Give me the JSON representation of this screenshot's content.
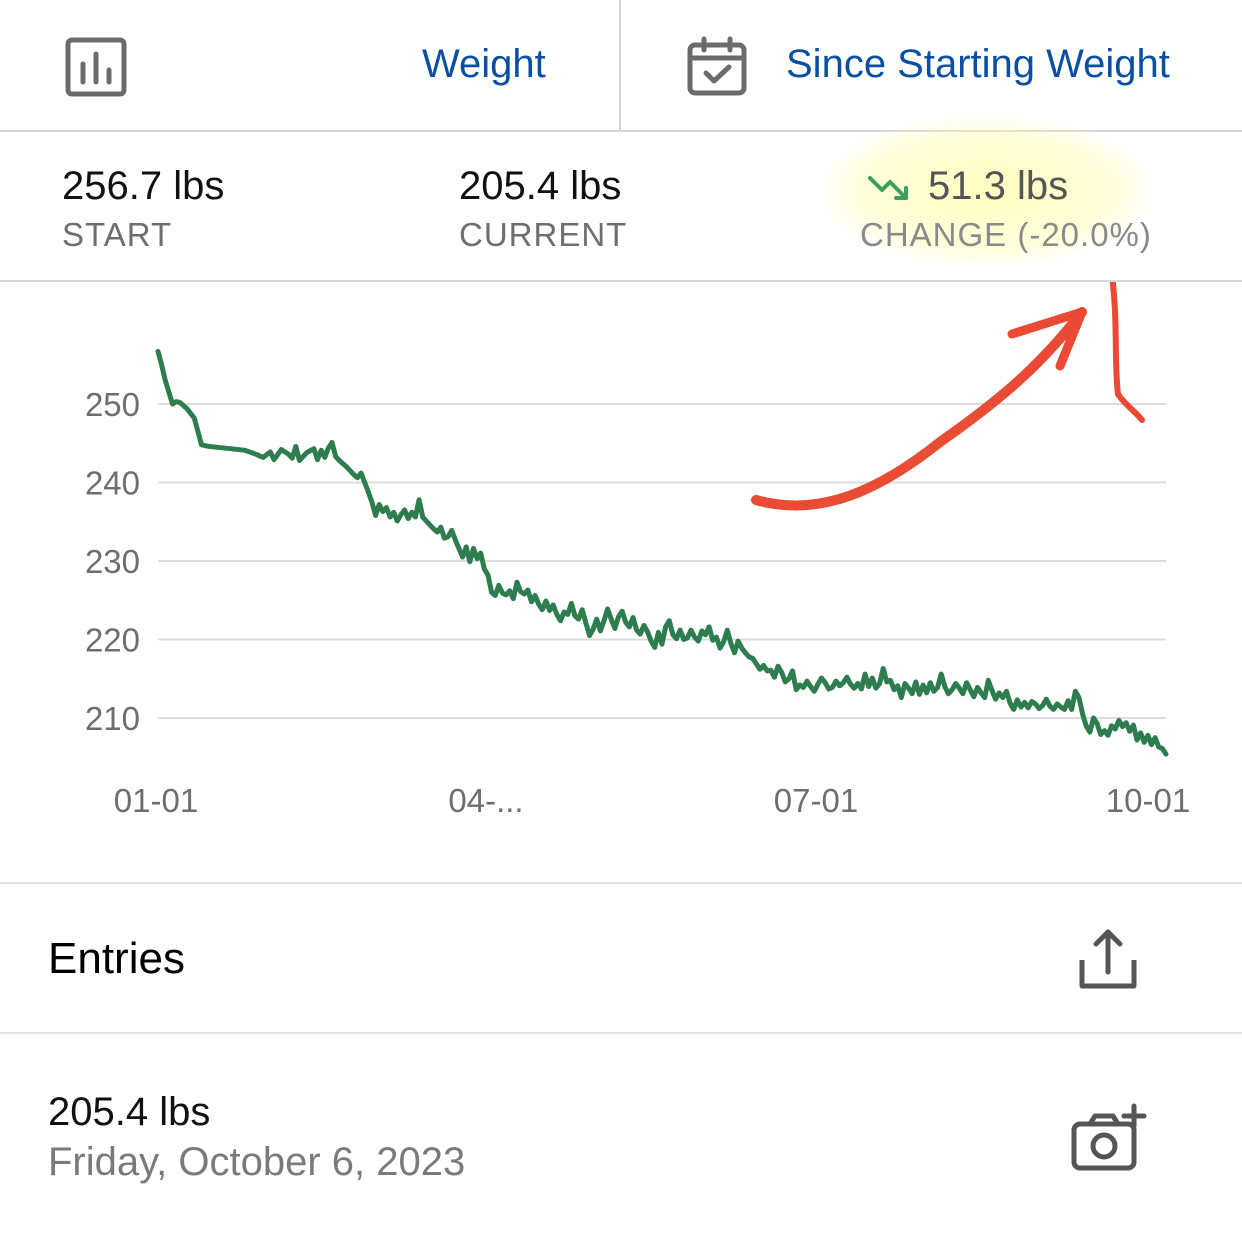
{
  "header": {
    "metric_label": "Weight",
    "range_label": "Since Starting Weight",
    "chart_icon": "bar-chart-icon",
    "calendar_icon": "calendar-check-icon",
    "accent_color": "#0a4fa3"
  },
  "stats": {
    "start": {
      "value": "256.7 lbs",
      "label": "START"
    },
    "current": {
      "value": "205.4 lbs",
      "label": "CURRENT"
    },
    "change": {
      "value": "51.3 lbs",
      "label": "CHANGE (-20.0%)",
      "icon": "trend-down-icon",
      "icon_color": "#3aa05c"
    }
  },
  "chart_data": {
    "type": "line",
    "x_tick_labels": [
      "01-01",
      "04-...",
      "07-01",
      "10-01"
    ],
    "y_ticks": [
      250,
      240,
      230,
      220,
      210
    ],
    "ylim": [
      205,
      257
    ],
    "xlim_days": [
      0,
      278
    ],
    "grid": true,
    "line_color": "#2e7d4f",
    "series": [
      {
        "points_day_weight": [
          [
            0,
            256.7
          ],
          [
            1,
            255.0
          ],
          [
            2,
            253.0
          ],
          [
            3,
            251.5
          ],
          [
            4,
            250.0
          ],
          [
            5,
            250.3
          ],
          [
            6,
            250.2
          ],
          [
            8,
            249.4
          ],
          [
            10,
            248.2
          ],
          [
            12,
            244.8
          ],
          [
            14,
            244.6
          ],
          [
            16,
            244.5
          ],
          [
            20,
            244.3
          ],
          [
            24,
            244.1
          ],
          [
            27,
            243.6
          ],
          [
            29,
            243.2
          ],
          [
            31,
            243.9
          ],
          [
            32,
            242.9
          ],
          [
            34,
            244.2
          ],
          [
            36,
            243.6
          ],
          [
            37,
            243.1
          ],
          [
            38,
            244.6
          ],
          [
            39,
            242.8
          ],
          [
            41,
            243.8
          ],
          [
            43,
            244.3
          ],
          [
            44,
            242.9
          ],
          [
            45,
            244.1
          ],
          [
            46,
            243.2
          ],
          [
            47,
            244.4
          ],
          [
            48,
            245.1
          ],
          [
            49,
            243.3
          ],
          [
            50,
            242.8
          ],
          [
            52,
            242.0
          ],
          [
            54,
            241.0
          ],
          [
            55,
            240.6
          ],
          [
            56,
            241.2
          ],
          [
            57,
            240.0
          ],
          [
            58,
            238.8
          ],
          [
            59,
            237.5
          ],
          [
            60,
            235.8
          ],
          [
            61,
            237.2
          ],
          [
            62,
            236.3
          ],
          [
            63,
            236.8
          ],
          [
            64,
            235.6
          ],
          [
            65,
            236.2
          ],
          [
            66,
            235.1
          ],
          [
            67,
            235.9
          ],
          [
            68,
            236.5
          ],
          [
            69,
            235.4
          ],
          [
            70,
            236.2
          ],
          [
            71,
            235.6
          ],
          [
            72,
            237.8
          ],
          [
            73,
            235.6
          ],
          [
            74,
            235.1
          ],
          [
            75,
            234.6
          ],
          [
            76,
            234.1
          ],
          [
            77,
            233.7
          ],
          [
            78,
            234.3
          ],
          [
            79,
            232.9
          ],
          [
            80,
            233.1
          ],
          [
            81,
            233.9
          ],
          [
            82,
            232.7
          ],
          [
            83,
            231.6
          ],
          [
            84,
            230.5
          ],
          [
            85,
            231.8
          ],
          [
            86,
            229.9
          ],
          [
            87,
            231.6
          ],
          [
            88,
            230.3
          ],
          [
            89,
            231.0
          ],
          [
            90,
            229.0
          ],
          [
            91,
            228.2
          ],
          [
            92,
            226.0
          ],
          [
            93,
            225.6
          ],
          [
            94,
            226.9
          ],
          [
            95,
            225.9
          ],
          [
            96,
            225.7
          ],
          [
            97,
            226.2
          ],
          [
            98,
            225.2
          ],
          [
            99,
            227.3
          ],
          [
            100,
            226.1
          ],
          [
            101,
            225.8
          ],
          [
            102,
            226.3
          ],
          [
            103,
            224.8
          ],
          [
            104,
            225.6
          ],
          [
            105,
            224.5
          ],
          [
            106,
            223.8
          ],
          [
            107,
            224.9
          ],
          [
            108,
            223.7
          ],
          [
            109,
            224.4
          ],
          [
            110,
            223.2
          ],
          [
            111,
            222.4
          ],
          [
            112,
            223.5
          ],
          [
            113,
            223.2
          ],
          [
            114,
            224.6
          ],
          [
            115,
            223.0
          ],
          [
            116,
            222.6
          ],
          [
            117,
            223.8
          ],
          [
            118,
            222.1
          ],
          [
            119,
            220.5
          ],
          [
            120,
            221.3
          ],
          [
            121,
            222.6
          ],
          [
            122,
            221.1
          ],
          [
            123,
            222.4
          ],
          [
            124,
            223.9
          ],
          [
            125,
            222.6
          ],
          [
            126,
            221.4
          ],
          [
            127,
            222.9
          ],
          [
            128,
            223.6
          ],
          [
            129,
            222.2
          ],
          [
            130,
            221.6
          ],
          [
            131,
            222.8
          ],
          [
            132,
            221.2
          ],
          [
            133,
            220.7
          ],
          [
            134,
            221.8
          ],
          [
            135,
            221.0
          ],
          [
            136,
            219.8
          ],
          [
            137,
            219.0
          ],
          [
            138,
            220.9
          ],
          [
            139,
            219.4
          ],
          [
            140,
            221.6
          ],
          [
            141,
            222.4
          ],
          [
            142,
            220.6
          ],
          [
            143,
            220.1
          ],
          [
            144,
            221.2
          ],
          [
            145,
            220.0
          ],
          [
            146,
            220.2
          ],
          [
            147,
            221.2
          ],
          [
            148,
            220.3
          ],
          [
            149,
            219.8
          ],
          [
            150,
            221.1
          ],
          [
            151,
            220.6
          ],
          [
            152,
            221.6
          ],
          [
            153,
            219.9
          ],
          [
            154,
            220.3
          ],
          [
            155,
            218.9
          ],
          [
            156,
            219.7
          ],
          [
            157,
            221.2
          ],
          [
            158,
            219.5
          ],
          [
            159,
            218.3
          ],
          [
            160,
            219.8
          ],
          [
            161,
            218.9
          ],
          [
            162,
            218.3
          ],
          [
            163,
            217.8
          ],
          [
            164,
            217.6
          ],
          [
            165,
            216.9
          ],
          [
            166,
            216.2
          ],
          [
            167,
            216.7
          ],
          [
            168,
            216.0
          ],
          [
            169,
            216.1
          ],
          [
            170,
            215.2
          ],
          [
            171,
            216.6
          ],
          [
            172,
            215.8
          ],
          [
            173,
            214.6
          ],
          [
            174,
            215.0
          ],
          [
            175,
            216.0
          ],
          [
            176,
            213.6
          ],
          [
            177,
            214.2
          ],
          [
            178,
            213.9
          ],
          [
            179,
            214.7
          ],
          [
            180,
            214.0
          ],
          [
            181,
            213.4
          ],
          [
            182,
            214.3
          ],
          [
            183,
            215.1
          ],
          [
            184,
            214.5
          ],
          [
            185,
            213.7
          ],
          [
            186,
            213.9
          ],
          [
            187,
            214.7
          ],
          [
            188,
            214.1
          ],
          [
            189,
            214.5
          ],
          [
            190,
            215.2
          ],
          [
            191,
            214.3
          ],
          [
            192,
            213.8
          ],
          [
            193,
            214.4
          ],
          [
            194,
            213.7
          ],
          [
            195,
            215.6
          ],
          [
            196,
            214.0
          ],
          [
            197,
            215.1
          ],
          [
            198,
            213.8
          ],
          [
            199,
            214.4
          ],
          [
            200,
            216.3
          ],
          [
            201,
            214.6
          ],
          [
            202,
            214.8
          ],
          [
            203,
            213.6
          ],
          [
            204,
            214.1
          ],
          [
            205,
            212.6
          ],
          [
            206,
            214.4
          ],
          [
            207,
            213.8
          ],
          [
            208,
            213.1
          ],
          [
            209,
            214.6
          ],
          [
            210,
            213.0
          ],
          [
            211,
            214.2
          ],
          [
            212,
            213.2
          ],
          [
            213,
            214.5
          ],
          [
            214,
            213.4
          ],
          [
            215,
            213.9
          ],
          [
            216,
            215.6
          ],
          [
            217,
            214.0
          ],
          [
            218,
            213.1
          ],
          [
            219,
            213.6
          ],
          [
            220,
            214.4
          ],
          [
            221,
            213.8
          ],
          [
            222,
            213.1
          ],
          [
            223,
            214.5
          ],
          [
            224,
            213.6
          ],
          [
            225,
            212.7
          ],
          [
            226,
            213.9
          ],
          [
            227,
            213.2
          ],
          [
            228,
            212.6
          ],
          [
            229,
            214.8
          ],
          [
            230,
            213.5
          ],
          [
            231,
            212.4
          ],
          [
            232,
            213.2
          ],
          [
            233,
            212.6
          ],
          [
            234,
            213.4
          ],
          [
            235,
            211.9
          ],
          [
            236,
            211.1
          ],
          [
            237,
            212.3
          ],
          [
            238,
            211.4
          ],
          [
            239,
            212.0
          ],
          [
            240,
            211.3
          ],
          [
            241,
            212.1
          ],
          [
            242,
            211.8
          ],
          [
            243,
            211.2
          ],
          [
            244,
            211.6
          ],
          [
            245,
            212.4
          ],
          [
            246,
            211.5
          ],
          [
            247,
            211.1
          ],
          [
            248,
            211.8
          ],
          [
            249,
            211.4
          ],
          [
            250,
            211.1
          ],
          [
            251,
            212.2
          ],
          [
            252,
            211.1
          ],
          [
            253,
            213.4
          ],
          [
            254,
            212.6
          ],
          [
            255,
            210.5
          ],
          [
            256,
            209.0
          ],
          [
            257,
            208.2
          ],
          [
            258,
            210.0
          ],
          [
            259,
            209.3
          ],
          [
            260,
            207.9
          ],
          [
            261,
            208.4
          ],
          [
            262,
            207.8
          ],
          [
            263,
            209.0
          ],
          [
            264,
            208.6
          ],
          [
            265,
            209.7
          ],
          [
            266,
            208.9
          ],
          [
            267,
            209.4
          ],
          [
            268,
            208.3
          ],
          [
            269,
            209.1
          ],
          [
            270,
            207.2
          ],
          [
            271,
            208.1
          ],
          [
            272,
            206.9
          ],
          [
            273,
            207.8
          ],
          [
            274,
            206.6
          ],
          [
            275,
            207.5
          ],
          [
            276,
            206.3
          ],
          [
            277,
            206.1
          ],
          [
            278,
            205.4
          ]
        ]
      }
    ]
  },
  "entries": {
    "title": "Entries",
    "share_icon": "share-icon",
    "items": [
      {
        "weight": "205.4 lbs",
        "date": "Friday, October 6, 2023",
        "action_icon": "add-photo-icon"
      }
    ]
  },
  "annotation": {
    "color": "#e8371e"
  }
}
